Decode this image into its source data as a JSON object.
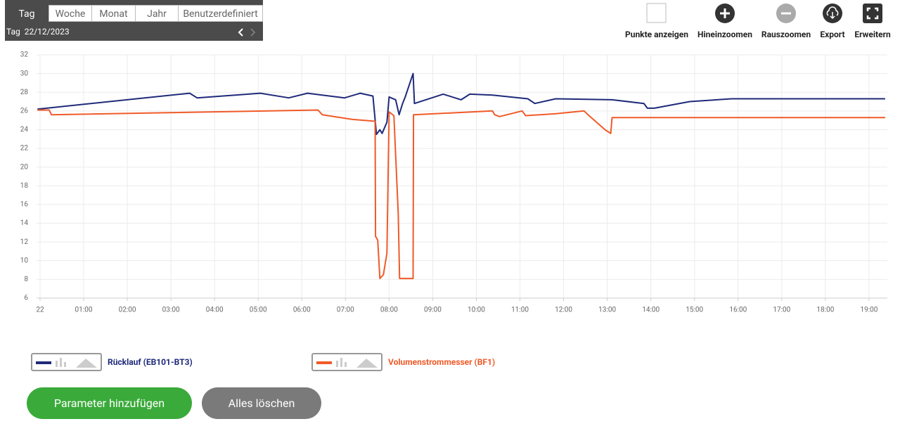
{
  "tabs": [
    "Tag",
    "Woche",
    "Monat",
    "Jahr",
    "Benutzerdefiniert"
  ],
  "period": {
    "label": "Tag",
    "date": "22/12/2023"
  },
  "toolbar": [
    "Punkte anzeigen",
    "Hineinzoomen",
    "Rauszoomen",
    "Export",
    "Erweitern"
  ],
  "chart_data": {
    "type": "line",
    "xlim": [
      -0.08,
      19.42
    ],
    "ylim": [
      6,
      32
    ],
    "yticks": [
      6,
      8,
      10,
      12,
      14,
      16,
      18,
      20,
      22,
      24,
      26,
      28,
      30,
      32
    ],
    "xticks": [
      {
        "value": 0,
        "label": "22"
      },
      {
        "value": 1,
        "label": "01:00"
      },
      {
        "value": 2,
        "label": "02:00"
      },
      {
        "value": 3,
        "label": "03:00"
      },
      {
        "value": 4,
        "label": "04:00"
      },
      {
        "value": 5,
        "label": "05:00"
      },
      {
        "value": 6,
        "label": "06:00"
      },
      {
        "value": 7,
        "label": "07:00"
      },
      {
        "value": 8,
        "label": "08:00"
      },
      {
        "value": 9,
        "label": "09:00"
      },
      {
        "value": 10,
        "label": "10:00"
      },
      {
        "value": 11,
        "label": "11:00"
      },
      {
        "value": 12,
        "label": "12:00"
      },
      {
        "value": 13,
        "label": "13:00"
      },
      {
        "value": 14,
        "label": "14:00"
      },
      {
        "value": 15,
        "label": "15:00"
      },
      {
        "value": 16,
        "label": "16:00"
      },
      {
        "value": 17,
        "label": "17:00"
      },
      {
        "value": 18,
        "label": "18:00"
      },
      {
        "value": 19,
        "label": "19:00"
      }
    ],
    "grid": true,
    "series": [
      {
        "name": "Rücklauf (EB101-BT3)",
        "color": "#1f2a7a",
        "x": [
          -0.06,
          3.43,
          3.6,
          5.05,
          5.7,
          6.13,
          6.98,
          7.34,
          7.63,
          7.71,
          7.79,
          7.84,
          7.95,
          8.0,
          8.15,
          8.23,
          8.31,
          8.37,
          8.55,
          8.58,
          9.24,
          9.65,
          9.85,
          10.37,
          11.18,
          11.34,
          11.82,
          13.11,
          13.84,
          13.92,
          14.08,
          14.89,
          15.85,
          19.37
        ],
        "values": [
          26.2,
          27.9,
          27.4,
          27.9,
          27.4,
          27.9,
          27.4,
          27.9,
          27.6,
          23.5,
          24.0,
          23.6,
          24.8,
          27.5,
          27.2,
          25.6,
          26.8,
          27.5,
          30.0,
          26.8,
          27.8,
          27.2,
          27.8,
          27.7,
          27.3,
          26.8,
          27.3,
          27.2,
          26.8,
          26.3,
          26.3,
          27.0,
          27.3,
          27.3
        ]
      },
      {
        "name": "Volumenstrommesser (BF1)",
        "color": "#f05a28",
        "x": [
          -0.06,
          0.21,
          0.26,
          6.37,
          6.47,
          7.15,
          7.68,
          7.69,
          7.74,
          7.79,
          7.87,
          7.95,
          8.0,
          8.11,
          8.21,
          8.24,
          8.55,
          8.56,
          10.37,
          10.42,
          10.53,
          11.05,
          11.13,
          11.82,
          12.47,
          12.56,
          12.95,
          13.08,
          13.11,
          19.37
        ],
        "values": [
          26.1,
          26.1,
          25.6,
          26.1,
          25.6,
          25.1,
          24.9,
          12.6,
          12.2,
          8.1,
          8.5,
          10.8,
          25.9,
          25.5,
          15.0,
          8.1,
          8.1,
          25.6,
          26.0,
          25.6,
          25.4,
          26.0,
          25.5,
          25.7,
          26.0,
          25.6,
          24.0,
          23.6,
          25.3,
          25.3
        ]
      }
    ]
  },
  "buttons": [
    "Parameter hinzufügen",
    "Alles löschen"
  ]
}
